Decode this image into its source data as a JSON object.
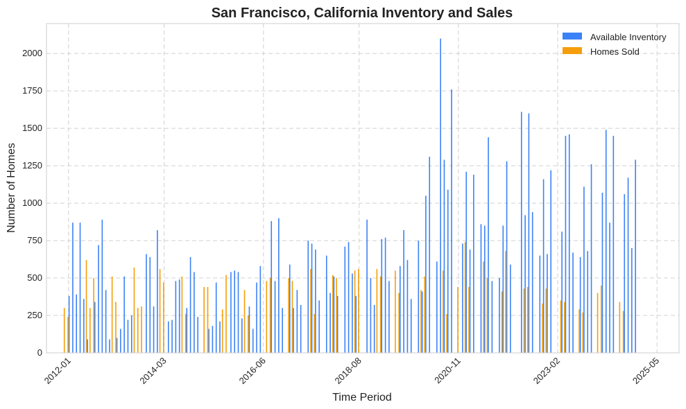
{
  "chart_data": {
    "type": "bar",
    "title": "San Francisco, California Inventory and Sales",
    "xlabel": "Time Period",
    "ylabel": "Number of Homes",
    "x_range": [
      "2011-07",
      "2025-11"
    ],
    "ylim": [
      0,
      2200
    ],
    "yticks": [
      0,
      250,
      500,
      750,
      1000,
      1250,
      1500,
      1750,
      2000
    ],
    "xticks": [
      {
        "label": "2012-01",
        "date": "2012-01"
      },
      {
        "label": "2014-03",
        "date": "2014-03"
      },
      {
        "label": "2016-06",
        "date": "2016-06"
      },
      {
        "label": "2018-08",
        "date": "2018-08"
      },
      {
        "label": "2020-11",
        "date": "2020-11"
      },
      {
        "label": "2023-02",
        "date": "2023-02"
      },
      {
        "label": "2025-05",
        "date": "2025-05"
      }
    ],
    "grid": true,
    "legend_position": "top-right",
    "series": [
      {
        "name": "Available Inventory",
        "color": "#3b82f6",
        "points": [
          [
            "2012-01",
            380
          ],
          [
            "2012-02",
            870
          ],
          [
            "2012-03",
            390
          ],
          [
            "2012-04",
            870
          ],
          [
            "2012-05",
            360
          ],
          [
            "2012-06",
            90
          ],
          [
            "2012-08",
            340
          ],
          [
            "2012-09",
            720
          ],
          [
            "2012-10",
            890
          ],
          [
            "2012-11",
            420
          ],
          [
            "2012-12",
            90
          ],
          [
            "2013-02",
            100
          ],
          [
            "2013-03",
            160
          ],
          [
            "2013-04",
            510
          ],
          [
            "2013-05",
            220
          ],
          [
            "2013-06",
            250
          ],
          [
            "2013-10",
            660
          ],
          [
            "2013-11",
            640
          ],
          [
            "2013-12",
            310
          ],
          [
            "2014-01",
            820
          ],
          [
            "2014-04",
            210
          ],
          [
            "2014-05",
            220
          ],
          [
            "2014-06",
            480
          ],
          [
            "2014-07",
            490
          ],
          [
            "2014-09",
            300
          ],
          [
            "2014-10",
            640
          ],
          [
            "2014-11",
            540
          ],
          [
            "2014-12",
            240
          ],
          [
            "2015-03",
            160
          ],
          [
            "2015-04",
            180
          ],
          [
            "2015-05",
            470
          ],
          [
            "2015-06",
            210
          ],
          [
            "2015-09",
            540
          ],
          [
            "2015-10",
            550
          ],
          [
            "2015-11",
            540
          ],
          [
            "2015-12",
            230
          ],
          [
            "2016-02",
            310
          ],
          [
            "2016-03",
            160
          ],
          [
            "2016-04",
            470
          ],
          [
            "2016-05",
            580
          ],
          [
            "2016-08",
            880
          ],
          [
            "2016-09",
            480
          ],
          [
            "2016-10",
            900
          ],
          [
            "2016-11",
            300
          ],
          [
            "2017-01",
            590
          ],
          [
            "2017-02",
            300
          ],
          [
            "2017-03",
            420
          ],
          [
            "2017-04",
            320
          ],
          [
            "2017-06",
            750
          ],
          [
            "2017-07",
            730
          ],
          [
            "2017-08",
            690
          ],
          [
            "2017-09",
            350
          ],
          [
            "2017-11",
            650
          ],
          [
            "2017-12",
            400
          ],
          [
            "2018-01",
            510
          ],
          [
            "2018-02",
            380
          ],
          [
            "2018-04",
            710
          ],
          [
            "2018-05",
            740
          ],
          [
            "2018-06",
            530
          ],
          [
            "2018-07",
            380
          ],
          [
            "2018-10",
            890
          ],
          [
            "2018-11",
            500
          ],
          [
            "2018-12",
            320
          ],
          [
            "2019-02",
            760
          ],
          [
            "2019-03",
            770
          ],
          [
            "2019-04",
            480
          ],
          [
            "2019-07",
            580
          ],
          [
            "2019-08",
            820
          ],
          [
            "2019-09",
            620
          ],
          [
            "2019-10",
            360
          ],
          [
            "2019-12",
            750
          ],
          [
            "2020-01",
            410
          ],
          [
            "2020-02",
            1050
          ],
          [
            "2020-03",
            1310
          ],
          [
            "2020-05",
            610
          ],
          [
            "2020-06",
            2100
          ],
          [
            "2020-07",
            1290
          ],
          [
            "2020-08",
            1090
          ],
          [
            "2020-09",
            1760
          ],
          [
            "2020-12",
            730
          ],
          [
            "2021-01",
            1210
          ],
          [
            "2021-02",
            690
          ],
          [
            "2021-03",
            1190
          ],
          [
            "2021-05",
            860
          ],
          [
            "2021-06",
            850
          ],
          [
            "2021-07",
            1440
          ],
          [
            "2021-08",
            480
          ],
          [
            "2021-10",
            500
          ],
          [
            "2021-11",
            850
          ],
          [
            "2021-12",
            1280
          ],
          [
            "2022-01",
            590
          ],
          [
            "2022-04",
            1610
          ],
          [
            "2022-05",
            920
          ],
          [
            "2022-06",
            1600
          ],
          [
            "2022-07",
            940
          ],
          [
            "2022-09",
            650
          ],
          [
            "2022-10",
            1160
          ],
          [
            "2022-11",
            660
          ],
          [
            "2022-12",
            1220
          ],
          [
            "2023-03",
            810
          ],
          [
            "2023-04",
            1450
          ],
          [
            "2023-05",
            1460
          ],
          [
            "2023-06",
            670
          ],
          [
            "2023-08",
            640
          ],
          [
            "2023-09",
            1110
          ],
          [
            "2023-10",
            680
          ],
          [
            "2023-11",
            1260
          ],
          [
            "2024-02",
            1070
          ],
          [
            "2024-03",
            1490
          ],
          [
            "2024-04",
            870
          ],
          [
            "2024-05",
            1450
          ],
          [
            "2024-08",
            1060
          ],
          [
            "2024-09",
            1170
          ],
          [
            "2024-10",
            700
          ],
          [
            "2024-11",
            1290
          ]
        ]
      },
      {
        "name": "Homes Sold",
        "color": "#f59e0b",
        "points": [
          [
            "2011-12",
            300
          ],
          [
            "2012-01",
            240
          ],
          [
            "2012-06",
            620
          ],
          [
            "2012-07",
            300
          ],
          [
            "2012-08",
            500
          ],
          [
            "2013-01",
            510
          ],
          [
            "2013-02",
            340
          ],
          [
            "2013-07",
            570
          ],
          [
            "2013-08",
            300
          ],
          [
            "2013-09",
            310
          ],
          [
            "2014-02",
            560
          ],
          [
            "2014-03",
            470
          ],
          [
            "2014-08",
            510
          ],
          [
            "2014-09",
            260
          ],
          [
            "2015-02",
            440
          ],
          [
            "2015-03",
            440
          ],
          [
            "2015-07",
            290
          ],
          [
            "2015-08",
            520
          ],
          [
            "2016-01",
            420
          ],
          [
            "2016-02",
            250
          ],
          [
            "2016-07",
            480
          ],
          [
            "2016-08",
            500
          ],
          [
            "2017-01",
            500
          ],
          [
            "2017-02",
            480
          ],
          [
            "2017-07",
            560
          ],
          [
            "2017-08",
            260
          ],
          [
            "2018-01",
            520
          ],
          [
            "2018-02",
            500
          ],
          [
            "2018-07",
            550
          ],
          [
            "2018-08",
            560
          ],
          [
            "2019-01",
            560
          ],
          [
            "2019-02",
            510
          ],
          [
            "2019-06",
            550
          ],
          [
            "2019-07",
            400
          ],
          [
            "2020-01",
            420
          ],
          [
            "2020-02",
            510
          ],
          [
            "2020-07",
            550
          ],
          [
            "2020-08",
            260
          ],
          [
            "2020-11",
            440
          ],
          [
            "2021-01",
            740
          ],
          [
            "2021-02",
            440
          ],
          [
            "2021-06",
            610
          ],
          [
            "2021-07",
            500
          ],
          [
            "2021-11",
            410
          ],
          [
            "2021-12",
            680
          ],
          [
            "2022-05",
            430
          ],
          [
            "2022-06",
            440
          ],
          [
            "2022-10",
            330
          ],
          [
            "2022-11",
            430
          ],
          [
            "2023-03",
            350
          ],
          [
            "2023-04",
            340
          ],
          [
            "2023-08",
            290
          ],
          [
            "2023-09",
            270
          ],
          [
            "2024-01",
            400
          ],
          [
            "2024-02",
            450
          ],
          [
            "2024-07",
            340
          ],
          [
            "2024-08",
            280
          ]
        ]
      }
    ]
  }
}
